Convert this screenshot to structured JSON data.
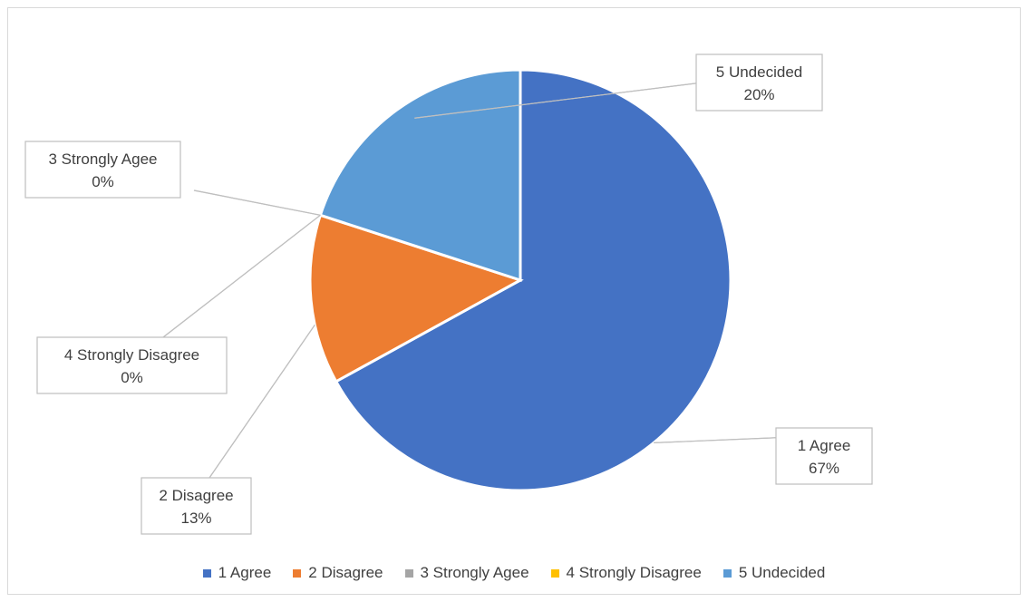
{
  "chart_data": {
    "type": "pie",
    "title": "",
    "slices": [
      {
        "label": "1 Agree",
        "value": 67,
        "percent_label": "67%",
        "color": "#4472c4"
      },
      {
        "label": "2 Disagree",
        "value": 13,
        "percent_label": "13%",
        "color": "#ed7d31"
      },
      {
        "label": "3 Strongly Agee",
        "value": 0,
        "percent_label": "0%",
        "color": "#a5a5a5"
      },
      {
        "label": "4 Strongly Disagree",
        "value": 0,
        "percent_label": "0%",
        "color": "#ffc000"
      },
      {
        "label": "5 Undecided",
        "value": 20,
        "percent_label": "20%",
        "color": "#5b9bd5"
      }
    ],
    "legend_position": "bottom",
    "data_labels": "callout"
  }
}
